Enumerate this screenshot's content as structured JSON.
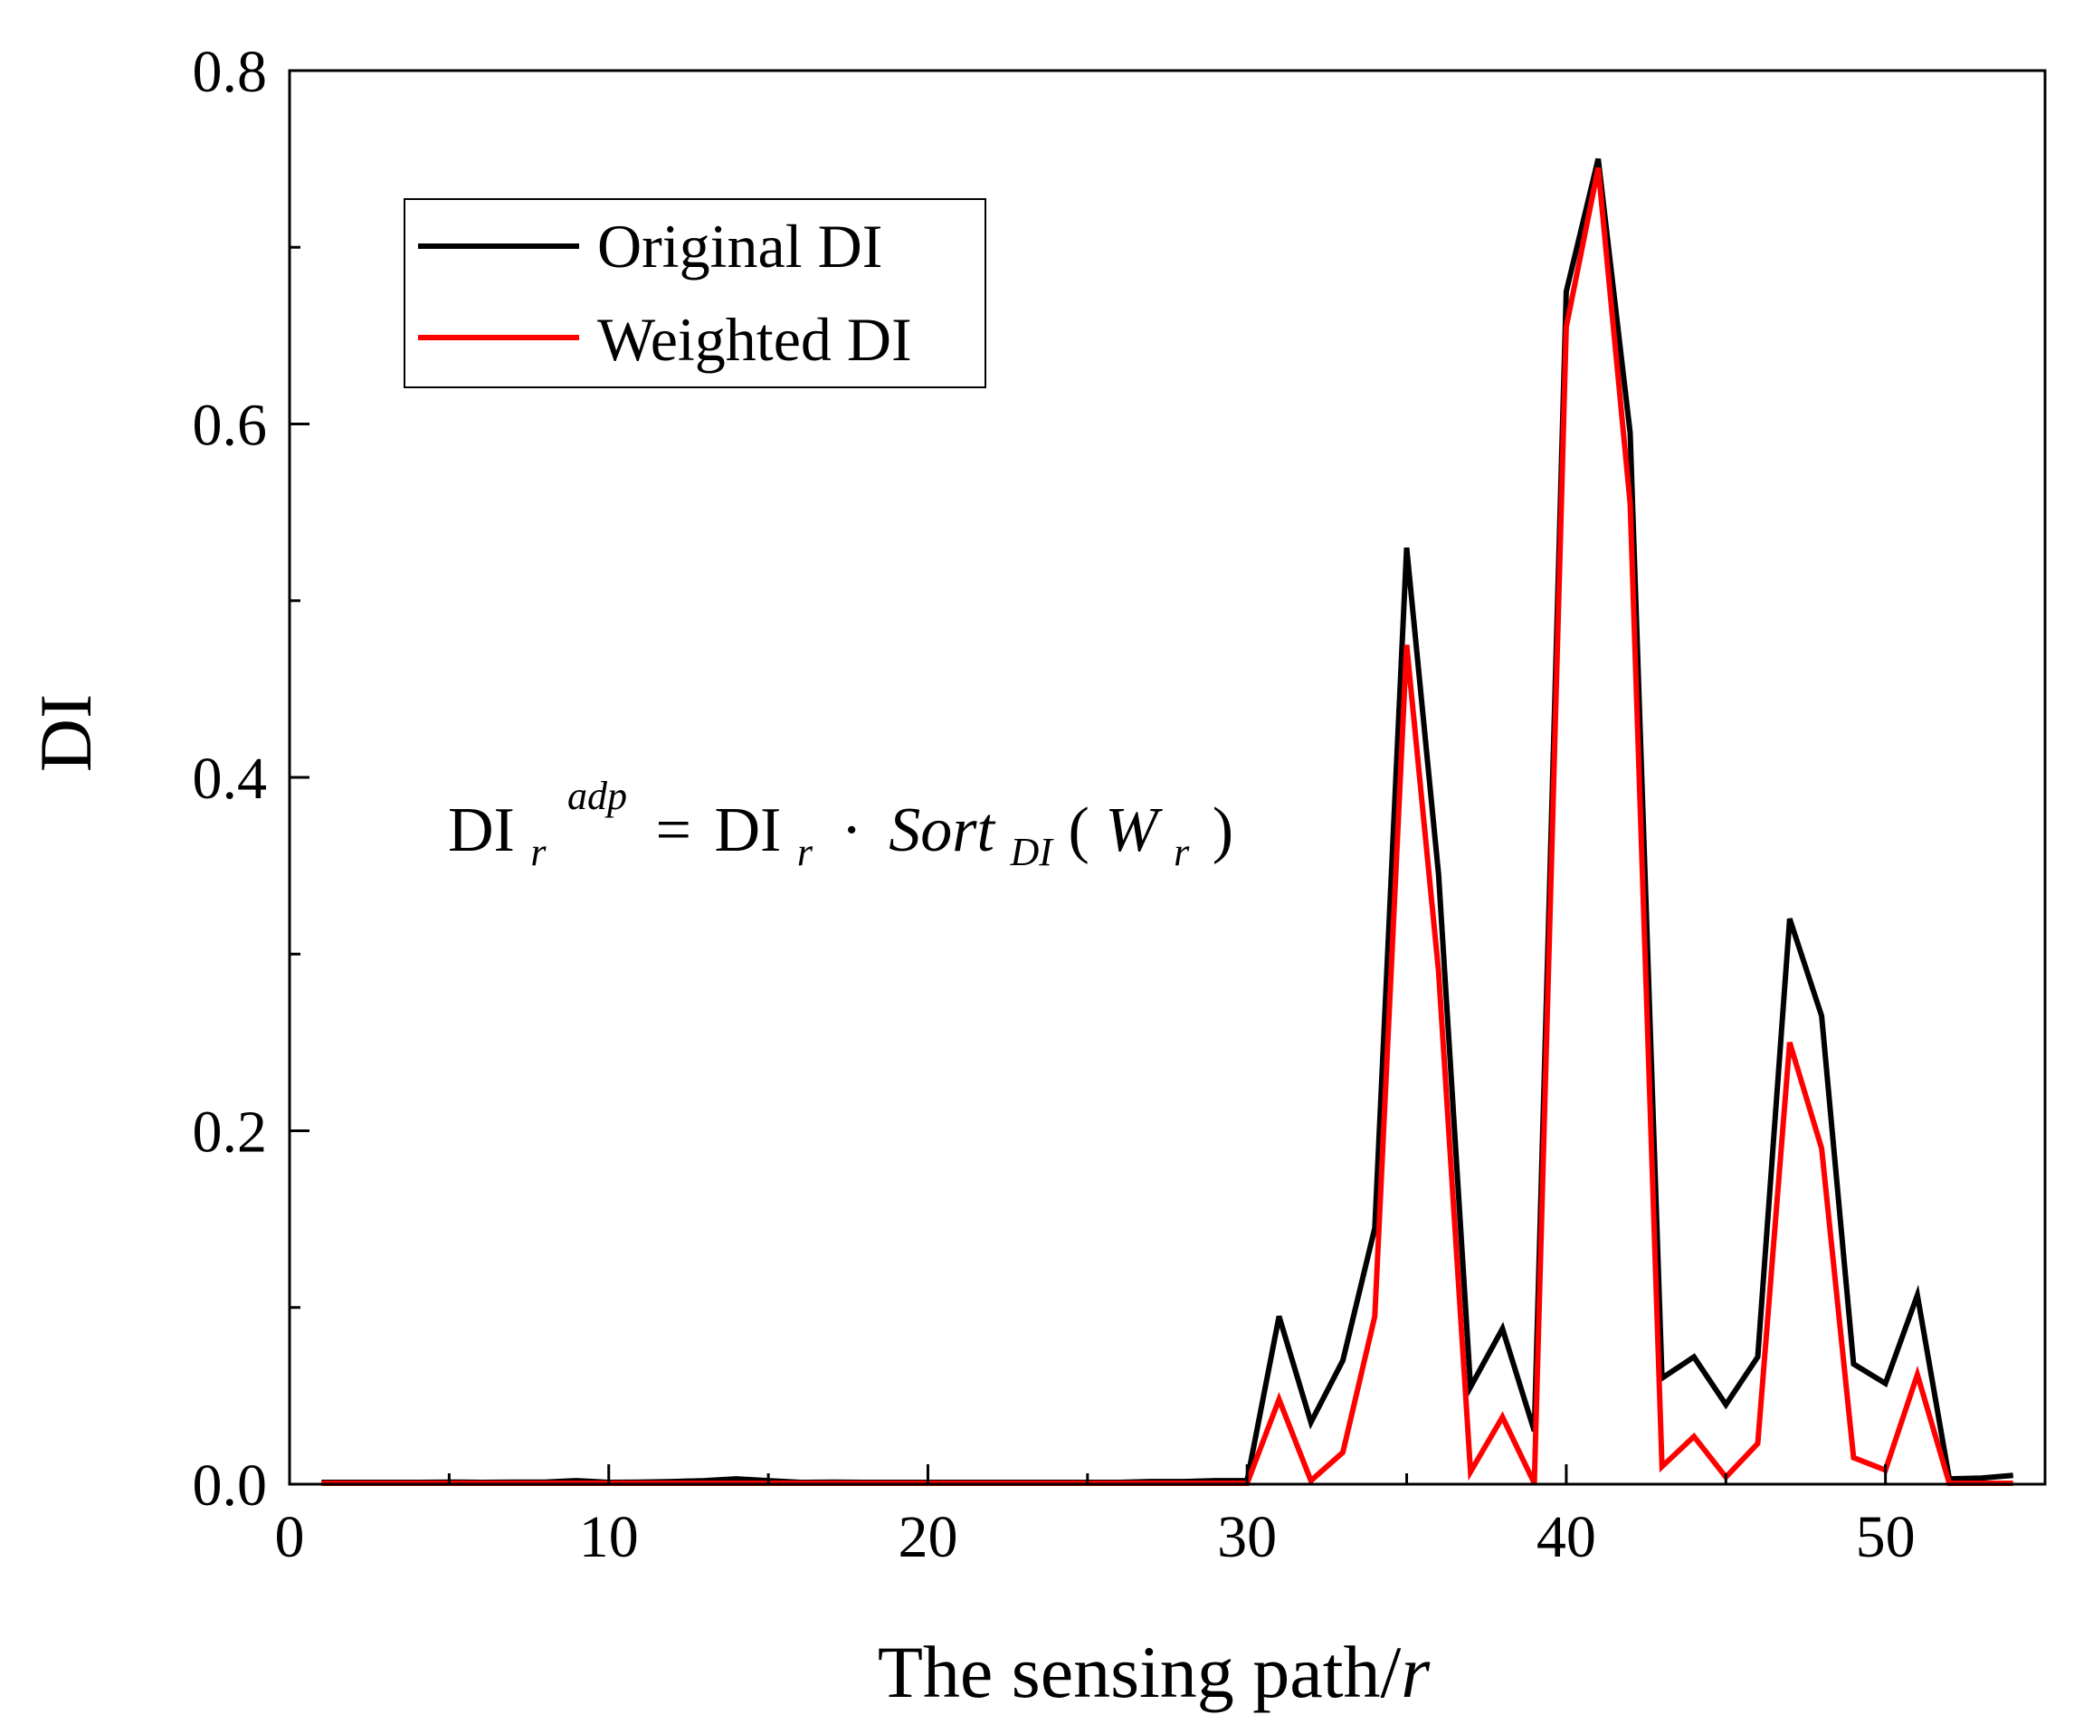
{
  "chart_data": {
    "type": "line",
    "xlabel_prefix": "The sensing path/",
    "xlabel_var": "r",
    "ylabel": "DI",
    "xlim": [
      0,
      55
    ],
    "ylim": [
      0,
      0.8
    ],
    "x_ticks": [
      0,
      10,
      20,
      30,
      40,
      50
    ],
    "x_tick_labels": [
      "0",
      "10",
      "20",
      "30",
      "40",
      "50"
    ],
    "y_ticks": [
      0,
      0.2,
      0.4,
      0.6,
      0.8
    ],
    "y_tick_labels": [
      "0.0",
      "0.2",
      "0.4",
      "0.6",
      "0.8"
    ],
    "legend_position": "top-left",
    "grid": false,
    "formula": {
      "lhs_base": "DI",
      "lhs_sub": "r",
      "lhs_sup": "adp",
      "equals": "=",
      "rhs_base": "DI",
      "rhs_sub": "r",
      "dot": "·",
      "func": "Sort",
      "func_sub": "DI",
      "arg_open": "(",
      "arg": "W",
      "arg_sub": "r",
      "arg_close": ")"
    },
    "x": [
      1,
      2,
      3,
      4,
      5,
      6,
      7,
      8,
      9,
      10,
      11,
      12,
      13,
      14,
      15,
      16,
      17,
      18,
      19,
      20,
      21,
      22,
      23,
      24,
      25,
      26,
      27,
      28,
      29,
      30,
      31,
      32,
      33,
      34,
      35,
      36,
      37,
      38,
      39,
      40,
      41,
      42,
      43,
      44,
      45,
      46,
      47,
      48,
      49,
      50,
      51,
      52,
      53,
      54
    ],
    "series": [
      {
        "name": "Original DI",
        "color": "#000000",
        "values": [
          0.001,
          0.001,
          0.001,
          0.001,
          0.0012,
          0.001,
          0.0012,
          0.0012,
          0.002,
          0.001,
          0.0012,
          0.0015,
          0.002,
          0.003,
          0.002,
          0.001,
          0.0012,
          0.001,
          0.001,
          0.001,
          0.001,
          0.001,
          0.001,
          0.001,
          0.001,
          0.001,
          0.0015,
          0.0015,
          0.002,
          0.002,
          0.095,
          0.035,
          0.07,
          0.145,
          0.53,
          0.345,
          0.055,
          0.088,
          0.03,
          0.675,
          0.75,
          0.595,
          0.06,
          0.072,
          0.045,
          0.072,
          0.32,
          0.265,
          0.068,
          0.057,
          0.107,
          0.003,
          0.0035,
          0.005
        ]
      },
      {
        "name": "Weighted DI",
        "color": "#ff0000",
        "values": [
          0.0005,
          0.0005,
          0.0005,
          0.0005,
          0.0005,
          0.0005,
          0.0005,
          0.0005,
          0.0005,
          0.0005,
          0.0005,
          0.0005,
          0.0005,
          0.0005,
          0.0005,
          0.0005,
          0.0005,
          0.0005,
          0.0005,
          0.0005,
          0.0005,
          0.0005,
          0.0005,
          0.0005,
          0.0005,
          0.0005,
          0.0005,
          0.0005,
          0.0005,
          0.0005,
          0.048,
          0.002,
          0.018,
          0.095,
          0.475,
          0.29,
          0.007,
          0.038,
          0.0005,
          0.655,
          0.745,
          0.555,
          0.01,
          0.027,
          0.004,
          0.023,
          0.25,
          0.19,
          0.015,
          0.008,
          0.062,
          0.0005,
          0.0005,
          0.0005
        ]
      }
    ]
  }
}
